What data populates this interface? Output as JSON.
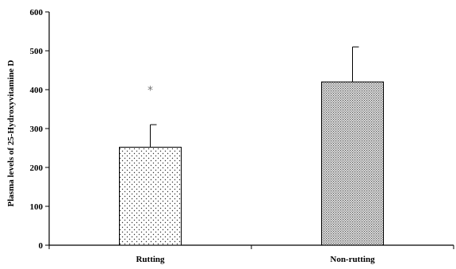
{
  "chart_data": {
    "type": "bar",
    "categories": [
      "Rutting",
      "Non-rutting"
    ],
    "values": [
      252,
      420
    ],
    "error_upper": [
      310,
      510
    ],
    "patterns": [
      "sparse-dots",
      "dense-dots"
    ],
    "ylabel": "Plasma levels of 25-Hydroxyvitamine D",
    "xlabel": "",
    "ylim": [
      0,
      600
    ],
    "yticks": [
      0,
      100,
      200,
      300,
      400,
      500,
      600
    ],
    "grid": false,
    "annotations": [
      {
        "category": "Rutting",
        "text": "*",
        "y": 405
      }
    ]
  }
}
